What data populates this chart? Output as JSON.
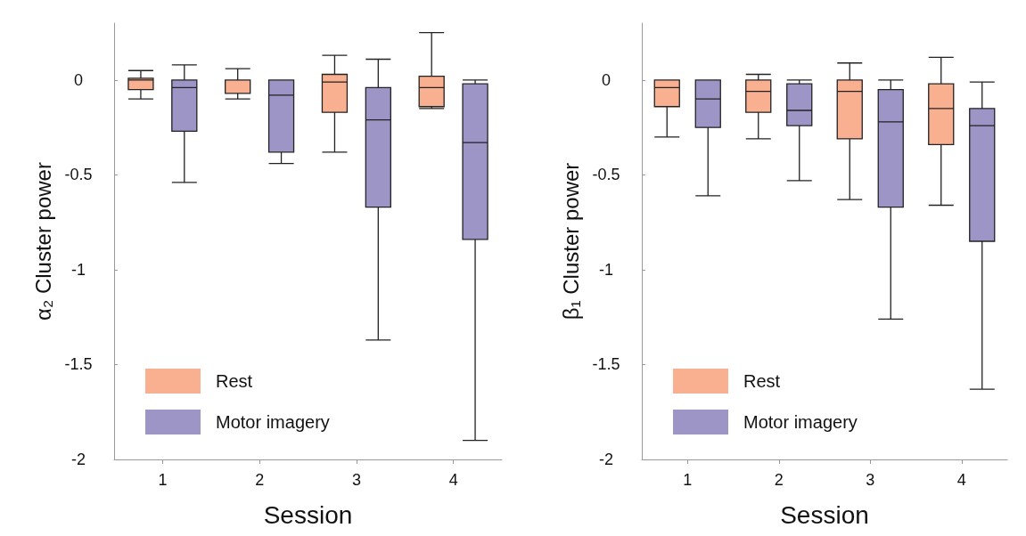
{
  "chart_data": [
    {
      "type": "box",
      "xlabel": "Session",
      "ylabel": "α₂ Cluster power",
      "categories": [
        "1",
        "2",
        "3",
        "4"
      ],
      "ylim": [
        -2,
        0.3
      ],
      "yticks": [
        0,
        -0.5,
        -1,
        -1.5,
        -2
      ],
      "grid": false,
      "legend": "bottom left",
      "series": [
        {
          "name": "Rest",
          "color": "#f9b090",
          "boxes": [
            {
              "low": -0.1,
              "q1": -0.05,
              "median": 0,
              "q3": 0.01,
              "high": 0.05
            },
            {
              "low": -0.1,
              "q1": -0.07,
              "median": 0,
              "q3": 0.0,
              "high": 0.06
            },
            {
              "low": -0.38,
              "q1": -0.17,
              "median": -0.01,
              "q3": 0.03,
              "high": 0.13
            },
            {
              "low": -0.15,
              "q1": -0.14,
              "median": -0.04,
              "q3": 0.02,
              "high": 0.25
            }
          ]
        },
        {
          "name": "Motor imagery",
          "color": "#9d95c6",
          "boxes": [
            {
              "low": -0.54,
              "q1": -0.27,
              "median": -0.04,
              "q3": 0,
              "high": 0.08
            },
            {
              "low": -0.44,
              "q1": -0.38,
              "median": -0.08,
              "q3": 0,
              "high": 0
            },
            {
              "low": -1.37,
              "q1": -0.67,
              "median": -0.21,
              "q3": -0.04,
              "high": 0.11
            },
            {
              "low": -1.9,
              "q1": -0.84,
              "median": -0.33,
              "q3": -0.02,
              "high": 0
            }
          ]
        }
      ]
    },
    {
      "type": "box",
      "xlabel": "Session",
      "ylabel": "β₁ Cluster power",
      "categories": [
        "1",
        "2",
        "3",
        "4"
      ],
      "ylim": [
        -2,
        0.3
      ],
      "yticks": [
        0,
        -0.5,
        -1,
        -1.5,
        -2
      ],
      "grid": false,
      "legend": "bottom left",
      "series": [
        {
          "name": "Rest",
          "color": "#f9b090",
          "boxes": [
            {
              "low": -0.3,
              "q1": -0.14,
              "median": -0.04,
              "q3": 0,
              "high": 0
            },
            {
              "low": -0.31,
              "q1": -0.17,
              "median": -0.06,
              "q3": 0,
              "high": 0.03
            },
            {
              "low": -0.63,
              "q1": -0.31,
              "median": -0.06,
              "q3": 0,
              "high": 0.09
            },
            {
              "low": -0.66,
              "q1": -0.34,
              "median": -0.15,
              "q3": -0.02,
              "high": 0.12
            }
          ]
        },
        {
          "name": "Motor imagery",
          "color": "#9d95c6",
          "boxes": [
            {
              "low": -0.61,
              "q1": -0.25,
              "median": -0.1,
              "q3": 0,
              "high": 0
            },
            {
              "low": -0.53,
              "q1": -0.24,
              "median": -0.16,
              "q3": -0.02,
              "high": 0
            },
            {
              "low": -1.26,
              "q1": -0.67,
              "median": -0.22,
              "q3": -0.05,
              "high": 0
            },
            {
              "low": -1.63,
              "q1": -0.85,
              "median": -0.24,
              "q3": -0.15,
              "high": -0.01
            }
          ]
        }
      ]
    }
  ]
}
